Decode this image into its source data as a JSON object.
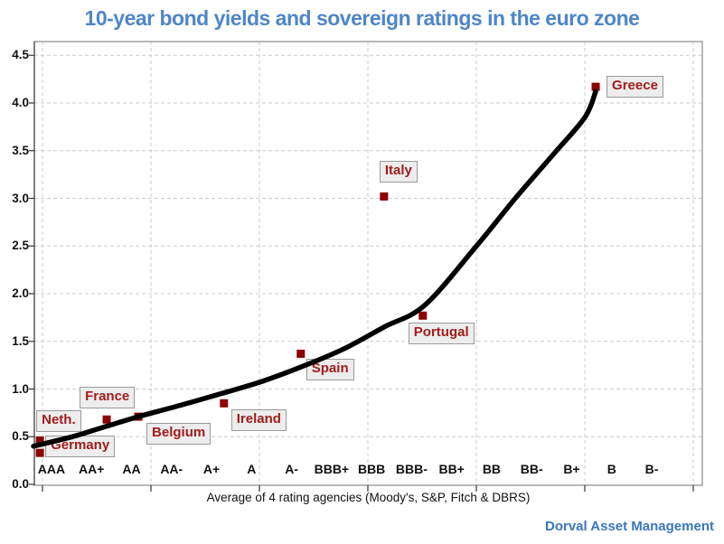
{
  "title": "10-year bond yields and sovereign ratings in the euro zone",
  "footer": "Dorval Asset Management",
  "colors": {
    "title": "#4e86c8",
    "footer": "#3a76c0",
    "marker": "#8b0000",
    "country_label_text": "#a21c1c",
    "country_label_bg": "#ededed",
    "trend": "#000000",
    "grid": "#cccccc"
  },
  "chart_data": {
    "type": "scatter",
    "title": "10-year bond yields and sovereign ratings in the euro zone",
    "xlabel": "Average of 4 rating agencies (Moody's, S&P, Fitch & DBRS)",
    "ylabel": "",
    "ylim": [
      0,
      4.5
    ],
    "yticks": [
      0.0,
      0.5,
      1.0,
      1.5,
      2.0,
      2.5,
      3.0,
      3.5,
      4.0,
      4.5
    ],
    "x_categories": [
      "AAA",
      "AA+",
      "AA",
      "AA-",
      "A+",
      "A",
      "A-",
      "BBB+",
      "BBB",
      "BBB-",
      "BB+",
      "BB",
      "BB-",
      "B+",
      "B",
      "B-"
    ],
    "grid": true,
    "legend": "none",
    "points": [
      {
        "name": "Germany",
        "rating": "AAA",
        "rating_x": 0.71,
        "yield": 0.33
      },
      {
        "name": "Neth.",
        "rating": "AAA",
        "rating_x": 0.71,
        "yield": 0.46
      },
      {
        "name": "France",
        "rating": "AA+",
        "rating_x": 2.38,
        "yield": 0.68
      },
      {
        "name": "Belgium",
        "rating": "AA",
        "rating_x": 3.17,
        "yield": 0.71
      },
      {
        "name": "Ireland",
        "rating": "A+",
        "rating_x": 5.31,
        "yield": 0.85
      },
      {
        "name": "Spain",
        "rating": "A-",
        "rating_x": 7.23,
        "yield": 1.37
      },
      {
        "name": "Italy",
        "rating": "BBB",
        "rating_x": 9.31,
        "yield": 3.02
      },
      {
        "name": "Portugal",
        "rating": "BBB-",
        "rating_x": 10.28,
        "yield": 1.77
      },
      {
        "name": "Greece",
        "rating": "B+",
        "rating_x": 14.6,
        "yield": 4.17
      }
    ],
    "trend_curve": [
      [
        0.55,
        0.4
      ],
      [
        1.52,
        0.5
      ],
      [
        2.38,
        0.61
      ],
      [
        3.17,
        0.71
      ],
      [
        4.23,
        0.83
      ],
      [
        5.31,
        0.96
      ],
      [
        6.26,
        1.08
      ],
      [
        7.23,
        1.23
      ],
      [
        8.3,
        1.42
      ],
      [
        9.31,
        1.65
      ],
      [
        10.33,
        1.88
      ],
      [
        11.62,
        2.5
      ],
      [
        12.59,
        3.0
      ],
      [
        13.56,
        3.47
      ],
      [
        14.33,
        3.85
      ],
      [
        14.6,
        4.12
      ]
    ]
  }
}
